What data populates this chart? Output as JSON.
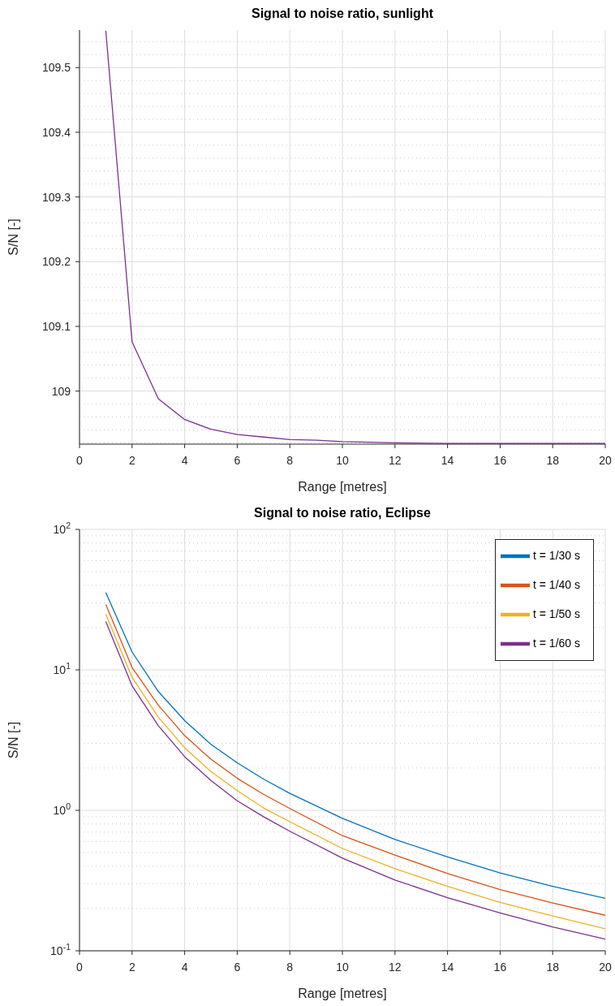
{
  "chart_data": [
    {
      "type": "line",
      "title": "Signal to noise ratio, sunlight",
      "xlabel": "Range [metres]",
      "ylabel": "S/N [-]",
      "x": [
        1,
        2,
        3,
        4,
        5,
        6,
        7,
        8,
        9,
        10,
        12,
        14,
        16,
        18,
        20
      ],
      "series": [
        {
          "color": "#7e2f8e",
          "values": [
            109.557,
            109.076,
            108.988,
            108.956,
            108.941,
            108.933,
            108.929,
            108.925,
            108.924,
            108.922,
            108.92,
            108.919,
            108.919,
            108.919,
            108.919
          ]
        }
      ],
      "xlim": [
        0,
        20
      ],
      "xticks": [
        0,
        2,
        4,
        6,
        8,
        10,
        12,
        14,
        16,
        18,
        20
      ],
      "ylim": [
        108.918,
        109.558
      ],
      "yticks": [
        109,
        109.1,
        109.2,
        109.3,
        109.4,
        109.5
      ],
      "grid": true,
      "legend": false,
      "marker": "none",
      "line_style": "solid"
    },
    {
      "type": "line",
      "title": "Signal to noise ratio, Eclipse",
      "xlabel": "Range [metres]",
      "ylabel": "S/N [-]",
      "x": [
        1,
        2,
        3,
        4,
        5,
        6,
        7,
        8,
        10,
        12,
        14,
        16,
        18,
        20
      ],
      "series": [
        {
          "name": "t = 1/30 s",
          "color": "#0072bd",
          "values": [
            35.5,
            13.4,
            7.0,
            4.35,
            2.95,
            2.18,
            1.67,
            1.32,
            0.877,
            0.62,
            0.466,
            0.358,
            0.288,
            0.236
          ]
        },
        {
          "name": "t = 1/40 s",
          "color": "#d95319",
          "values": [
            29.2,
            10.4,
            5.6,
            3.4,
            2.31,
            1.69,
            1.3,
            1.03,
            0.66,
            0.48,
            0.355,
            0.273,
            0.219,
            0.179
          ]
        },
        {
          "name": "t = 1/50 s",
          "color": "#edb120",
          "values": [
            24.9,
            8.85,
            4.6,
            2.79,
            1.89,
            1.38,
            1.04,
            0.83,
            0.535,
            0.384,
            0.288,
            0.221,
            0.177,
            0.1435
          ]
        },
        {
          "name": "t = 1/60 s",
          "color": "#7e2f8e",
          "values": [
            22.1,
            7.7,
            4.0,
            2.41,
            1.63,
            1.17,
            0.9,
            0.71,
            0.457,
            0.319,
            0.239,
            0.186,
            0.148,
            0.121
          ]
        }
      ],
      "xlim": [
        0,
        20
      ],
      "xticks": [
        0,
        2,
        4,
        6,
        8,
        10,
        12,
        14,
        16,
        18,
        20
      ],
      "ylim": [
        0.1,
        100
      ],
      "yticks": [
        {
          "value": 0.1,
          "label": "10$^{-1}$"
        },
        {
          "value": 1,
          "label": "10$^{0}$"
        },
        {
          "value": 10,
          "label": "10$^{1}$"
        },
        {
          "value": 100,
          "label": "10$^{2}$"
        }
      ],
      "log": "y",
      "grid": true,
      "legend": "top right",
      "marker": "none",
      "line_style": "solid"
    }
  ]
}
